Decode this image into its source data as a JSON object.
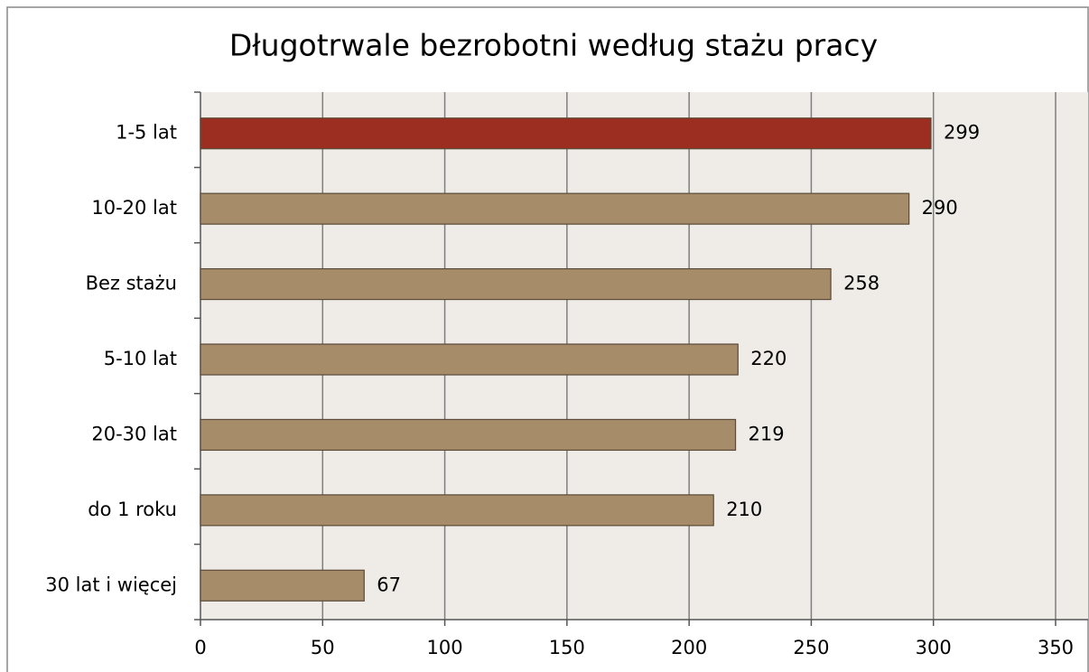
{
  "chart_data": {
    "type": "barh",
    "title": "Długotrwale bezrobotni według stażu pracy",
    "categories": [
      "1-5 lat",
      "10-20 lat",
      "Bez stażu",
      "5-10 lat",
      "20-30 lat",
      "do 1 roku",
      "30 lat i więcej"
    ],
    "values": [
      299,
      290,
      258,
      220,
      219,
      210,
      67
    ],
    "colors": [
      "#9b2e20",
      "#a68c69",
      "#a68c69",
      "#a68c69",
      "#a68c69",
      "#a68c69",
      "#a68c69"
    ],
    "xlim": [
      0,
      350
    ],
    "xticks": [
      0,
      50,
      100,
      150,
      200,
      250,
      300,
      350
    ],
    "grid": true
  }
}
